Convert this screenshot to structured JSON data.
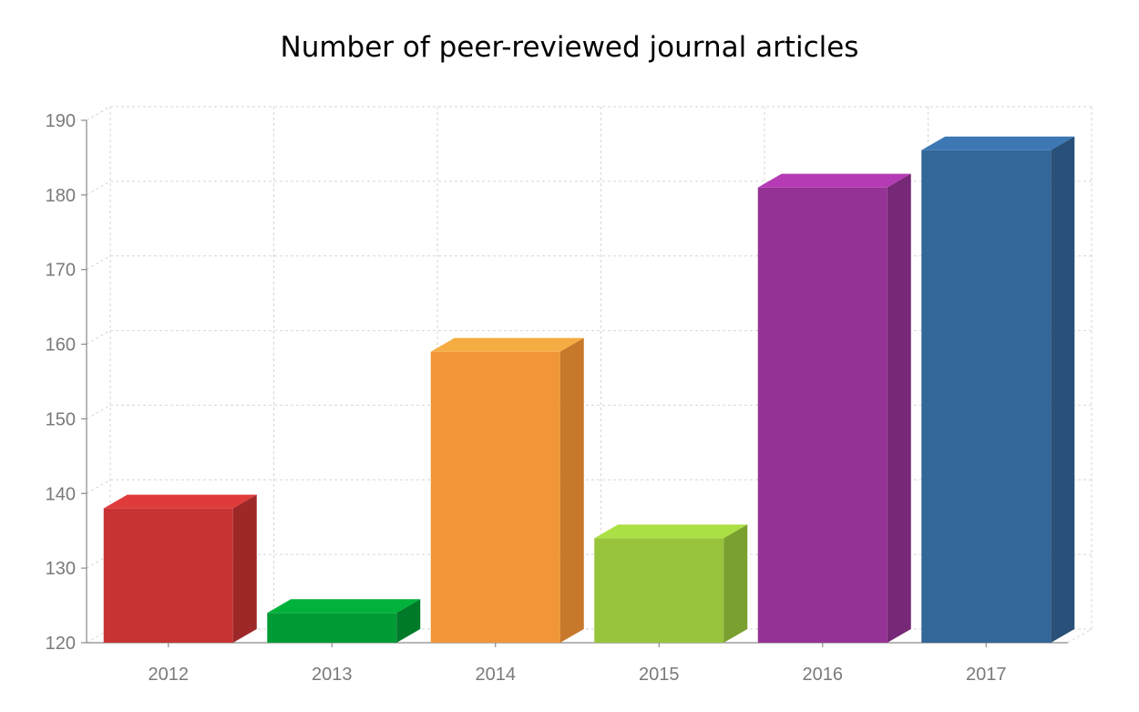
{
  "chart_data": {
    "type": "bar",
    "title": "Number of peer-reviewed journal articles",
    "xlabel": "",
    "ylabel": "",
    "categories": [
      "2012",
      "2013",
      "2014",
      "2015",
      "2016",
      "2017"
    ],
    "values": [
      138,
      124,
      159,
      134,
      181,
      186
    ],
    "ylim": [
      120,
      190
    ],
    "yticks": [
      120,
      130,
      140,
      150,
      160,
      170,
      180,
      190
    ],
    "grid": true,
    "legend": "none",
    "style": "3d",
    "colors": [
      {
        "front": "#c73333",
        "top": "#e03b3b",
        "side": "#9e2828"
      },
      {
        "front": "#009b34",
        "top": "#00b23c",
        "side": "#007a29"
      },
      {
        "front": "#f09638",
        "top": "#f5ac42",
        "side": "#c7782b"
      },
      {
        "front": "#98c43c",
        "top": "#abe045",
        "side": "#7aa02f"
      },
      {
        "front": "#953295",
        "top": "#b43bb4",
        "side": "#772877"
      },
      {
        "front": "#336699",
        "top": "#3d78b4",
        "side": "#285078"
      }
    ]
  }
}
